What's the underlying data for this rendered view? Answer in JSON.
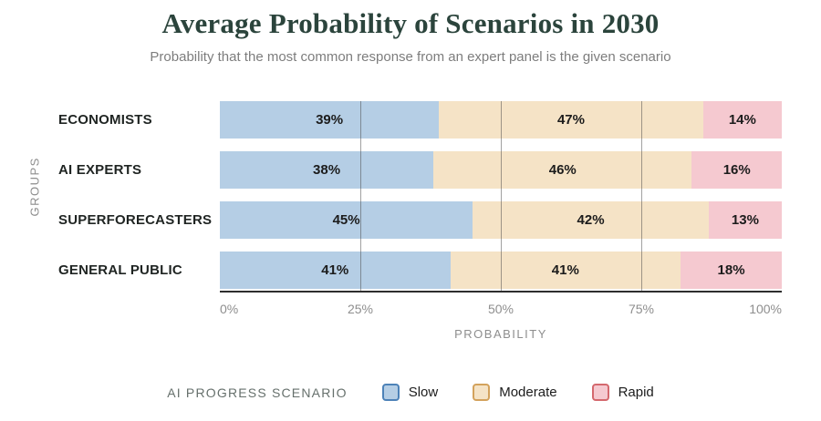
{
  "page": {
    "title": "Average Probability of Scenarios in 2030",
    "subtitle": "Probability that the most common response from an expert panel is the given scenario"
  },
  "chart_data": {
    "type": "bar",
    "variant": "horizontal-stacked",
    "title": "Average Probability of Scenarios in 2030",
    "subtitle": "Probability that the most common response from an expert panel is the given scenario",
    "ylabel": "GROUPS",
    "xlabel": "PROBABILITY",
    "categories": [
      "ECONOMISTS",
      "AI EXPERTS",
      "SUPERFORECASTERS",
      "GENERAL PUBLIC"
    ],
    "series": [
      {
        "name": "Slow",
        "fill": "#b5cee5",
        "border": "#4d82b8",
        "values": [
          39,
          38,
          45,
          41
        ]
      },
      {
        "name": "Moderate",
        "fill": "#f5e3c6",
        "border": "#d3a25c",
        "values": [
          47,
          46,
          42,
          41
        ]
      },
      {
        "name": "Rapid",
        "fill": "#f5c9d0",
        "border": "#d4686e",
        "values": [
          14,
          16,
          13,
          18
        ]
      }
    ],
    "value_suffix": "%",
    "xlim": [
      0,
      100
    ],
    "xticks": [
      0,
      25,
      50,
      75,
      100
    ],
    "xtick_labels": [
      "0%",
      "25%",
      "50%",
      "75%",
      "100%"
    ],
    "gridlines_at": [
      25,
      50,
      75
    ],
    "grid": true,
    "legend_title": "AI PROGRESS SCENARIO",
    "legend_position": "bottom",
    "axis_line_color": "#2d2d2d",
    "title_color": "#2b443c"
  }
}
